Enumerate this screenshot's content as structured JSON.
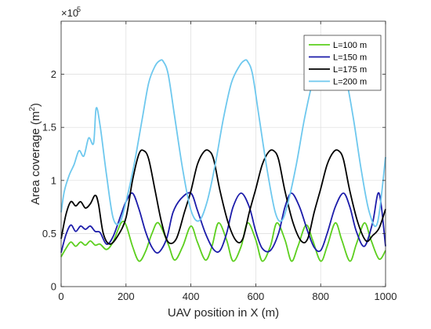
{
  "chart_data": {
    "type": "line",
    "title": "",
    "xlabel": "UAV position in X (m)",
    "ylabel_main": "Area coverage (m",
    "ylabel_sup": "2",
    "ylabel_close": ")",
    "xlim": [
      0,
      1000
    ],
    "ylim": [
      0,
      250000
    ],
    "xticks": [
      0,
      200,
      400,
      600,
      800,
      1000
    ],
    "yticks": [
      0,
      50000,
      100000,
      150000,
      200000
    ],
    "xtick_labels": [
      "0",
      "200",
      "400",
      "600",
      "800",
      "1000"
    ],
    "ytick_labels": [
      "0",
      "0.5",
      "1",
      "1.5",
      "2"
    ],
    "exponent_base": "×10",
    "exponent_power": "5",
    "grid": true,
    "legend_position": "top-right",
    "series": [
      {
        "name": "L=100 m",
        "color": "#5ccf1e",
        "x": [
          0,
          15,
          30,
          45,
          60,
          75,
          90,
          105,
          120,
          140,
          160,
          185,
          200,
          220,
          240,
          260,
          280,
          300,
          330,
          350,
          375,
          400,
          420,
          445,
          465,
          485,
          510,
          530,
          555,
          575,
          600,
          620,
          645,
          665,
          690,
          710,
          730,
          755,
          775,
          800,
          820,
          845,
          865,
          890,
          910,
          935,
          955,
          980,
          1000
        ],
        "y": [
          28000,
          36000,
          42000,
          38000,
          42000,
          39000,
          43000,
          39000,
          40000,
          35000,
          42000,
          60000,
          58000,
          38000,
          24000,
          33000,
          50000,
          60000,
          40000,
          25000,
          38000,
          57000,
          42000,
          25000,
          38000,
          60000,
          44000,
          24000,
          38000,
          60000,
          44000,
          24000,
          38000,
          60000,
          44000,
          24000,
          38000,
          58000,
          44000,
          24000,
          38000,
          60000,
          44000,
          24000,
          40000,
          60000,
          44000,
          26000,
          34000
        ]
      },
      {
        "name": "L=150 m",
        "color": "#1c1caa",
        "x": [
          0,
          15,
          30,
          45,
          60,
          75,
          90,
          105,
          120,
          140,
          160,
          185,
          200,
          220,
          240,
          260,
          280,
          300,
          325,
          345,
          370,
          400,
          420,
          445,
          470,
          490,
          510,
          530,
          555,
          580,
          600,
          620,
          645,
          670,
          690,
          710,
          735,
          760,
          780,
          800,
          820,
          845,
          870,
          890,
          910,
          935,
          960,
          980,
          1000
        ],
        "y": [
          32000,
          49000,
          58000,
          52000,
          57000,
          54000,
          57000,
          52000,
          51000,
          40000,
          47000,
          68000,
          80000,
          88000,
          73000,
          52000,
          37000,
          32000,
          45000,
          70000,
          83000,
          88000,
          72000,
          50000,
          35000,
          34000,
          50000,
          75000,
          88000,
          75000,
          52000,
          36000,
          34000,
          50000,
          75000,
          88000,
          75000,
          52000,
          37000,
          34000,
          50000,
          75000,
          88000,
          75000,
          52000,
          38000,
          60000,
          88000,
          38000
        ]
      },
      {
        "name": "L=175 m",
        "color": "#000000",
        "x": [
          0,
          15,
          30,
          45,
          60,
          75,
          90,
          105,
          115,
          130,
          150,
          175,
          200,
          220,
          240,
          255,
          270,
          290,
          310,
          330,
          355,
          380,
          400,
          420,
          440,
          455,
          470,
          490,
          515,
          540,
          560,
          580,
          600,
          620,
          640,
          655,
          670,
          690,
          715,
          740,
          760,
          780,
          800,
          820,
          840,
          855,
          870,
          890,
          915,
          940,
          960,
          980,
          1000
        ],
        "y": [
          45000,
          68000,
          80000,
          76000,
          80000,
          74000,
          78000,
          86000,
          78000,
          50000,
          40000,
          48000,
          65000,
          100000,
          125000,
          128000,
          120000,
          90000,
          60000,
          42000,
          45000,
          70000,
          90000,
          115000,
          127000,
          128000,
          120000,
          90000,
          60000,
          43000,
          45000,
          70000,
          92000,
          115000,
          127000,
          128000,
          120000,
          90000,
          60000,
          43000,
          45000,
          70000,
          92000,
          115000,
          127000,
          128000,
          120000,
          90000,
          60000,
          43000,
          48000,
          55000,
          73000
        ]
      },
      {
        "name": "L=200 m",
        "color": "#6ec8ee",
        "x": [
          0,
          10,
          25,
          40,
          55,
          70,
          85,
          100,
          108,
          120,
          140,
          160,
          180,
          200,
          225,
          250,
          270,
          290,
          305,
          315,
          330,
          350,
          375,
          400,
          425,
          450,
          475,
          500,
          525,
          550,
          565,
          575,
          590,
          610,
          635,
          660,
          680,
          700,
          725,
          750,
          775,
          800,
          825,
          850,
          875,
          900,
          925,
          950,
          975,
          1000
        ],
        "y": [
          70000,
          90000,
          105000,
          115000,
          128000,
          123000,
          140000,
          135000,
          168000,
          152000,
          105000,
          65000,
          60000,
          80000,
          115000,
          158000,
          192000,
          208000,
          213000,
          212000,
          200000,
          160000,
          110000,
          72000,
          62000,
          80000,
          115000,
          158000,
          192000,
          208000,
          213000,
          212000,
          200000,
          160000,
          110000,
          70000,
          62000,
          80000,
          115000,
          158000,
          192000,
          208000,
          213000,
          212000,
          200000,
          160000,
          110000,
          70000,
          60000,
          122000
        ]
      }
    ]
  }
}
